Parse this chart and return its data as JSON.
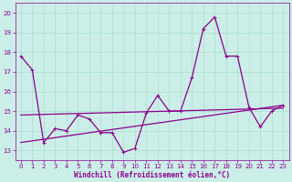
{
  "bg_color": "#cceee8",
  "line_color": "#8b008b",
  "grid_color": "#aaddcc",
  "xlabel": "Windchill (Refroidissement éolien,°C)",
  "yticks": [
    13,
    14,
    15,
    16,
    17,
    18,
    19,
    20
  ],
  "xticks": [
    0,
    1,
    2,
    3,
    4,
    5,
    6,
    7,
    8,
    9,
    10,
    11,
    12,
    13,
    14,
    15,
    16,
    17,
    18,
    19,
    20,
    21,
    22,
    23
  ],
  "xlim": [
    -0.5,
    23.5
  ],
  "ylim": [
    12.5,
    20.5
  ],
  "series1_x": [
    0,
    1,
    2,
    3,
    4,
    5,
    6,
    7,
    8,
    9,
    10,
    11,
    12,
    13,
    14,
    15,
    16,
    17,
    18,
    19,
    20,
    21,
    22,
    23
  ],
  "series1_y": [
    17.8,
    17.1,
    13.4,
    14.1,
    14.0,
    14.8,
    14.6,
    13.9,
    13.9,
    12.9,
    13.1,
    14.9,
    15.8,
    15.0,
    15.0,
    16.7,
    19.2,
    19.8,
    17.8,
    17.8,
    15.2,
    14.2,
    15.0,
    15.3
  ],
  "series2_x": [
    0,
    23
  ],
  "series2_y": [
    13.4,
    15.3
  ],
  "series3_x": [
    0,
    23
  ],
  "series3_y": [
    14.8,
    15.15
  ],
  "linewidth": 0.9,
  "axis_fontsize": 5.5,
  "tick_fontsize": 5
}
